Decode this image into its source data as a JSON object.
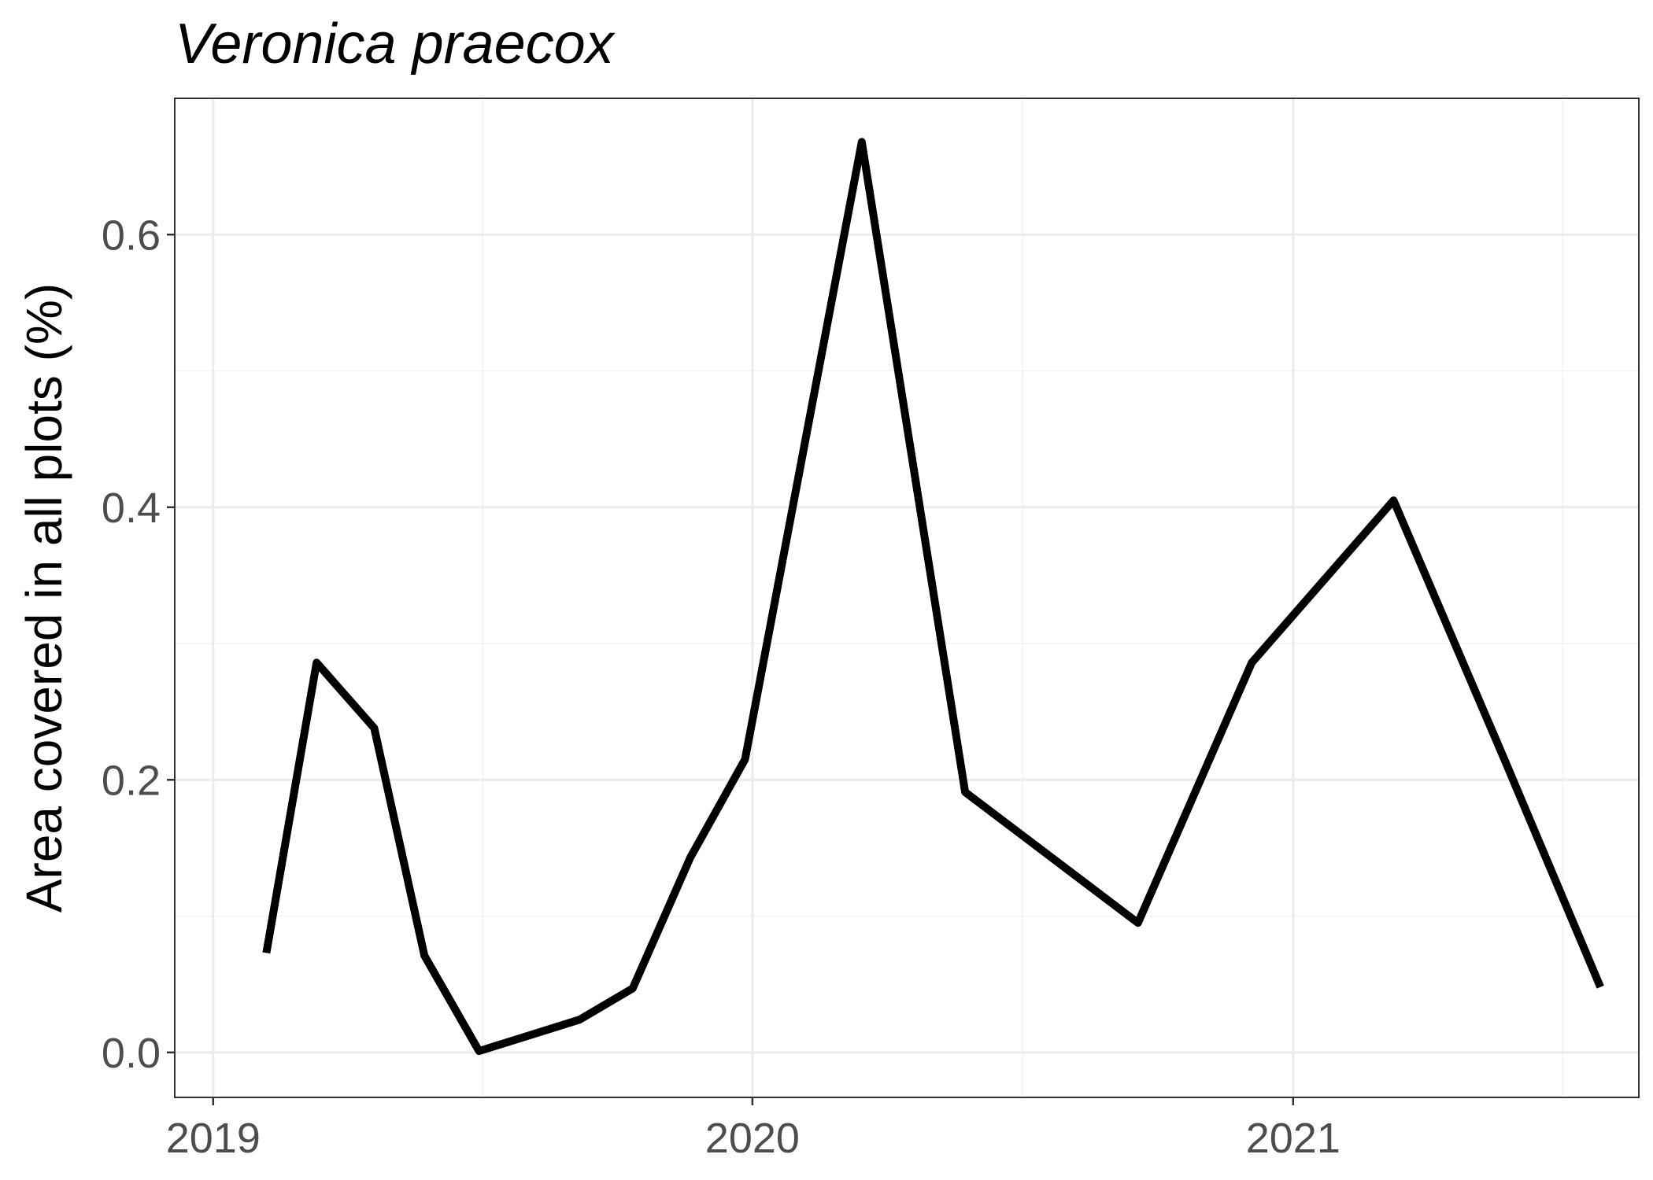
{
  "chart_data": {
    "type": "line",
    "title": "Veronica praecox",
    "xlabel": "",
    "ylabel": "Area covered in all plots (%)",
    "x_ticks": [
      "2019",
      "2020",
      "2021"
    ],
    "y_ticks": [
      "0.0",
      "0.2",
      "0.4",
      "0.6"
    ],
    "xlim": [
      "2018-12-06",
      "2021-08-23"
    ],
    "ylim": [
      -0.033,
      0.7
    ],
    "grid": true,
    "legend": "none",
    "series": [
      {
        "color": "#000000",
        "x": [
          "2019-02-06",
          "2019-03-12",
          "2019-04-20",
          "2019-05-24",
          "2019-06-30",
          "2019-09-06",
          "2019-10-12",
          "2019-11-20",
          "2019-12-27",
          "2020-03-15",
          "2020-05-24",
          "2020-09-18",
          "2020-12-04",
          "2021-03-10",
          "2021-05-24",
          "2021-07-28"
        ],
        "values": [
          0.073,
          0.286,
          0.238,
          0.071,
          0.001,
          0.024,
          0.047,
          0.143,
          0.215,
          0.668,
          0.191,
          0.095,
          0.286,
          0.405,
          0.215,
          0.048
        ]
      }
    ]
  }
}
